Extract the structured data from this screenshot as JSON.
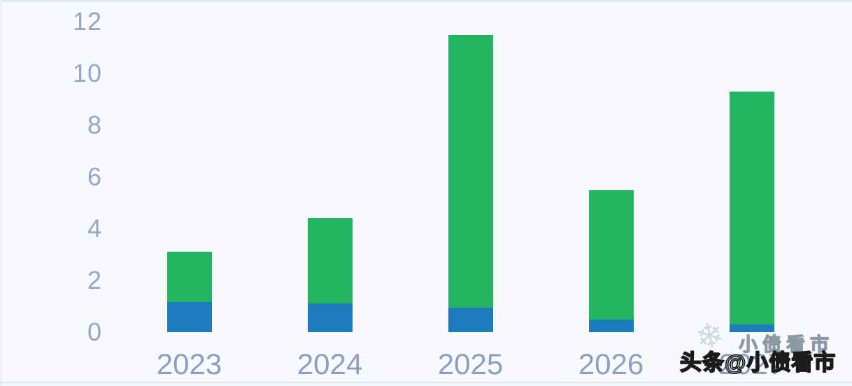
{
  "page": {
    "background": "#f7f9fd"
  },
  "colors": {
    "green_series": "#22b45f",
    "blue_series": "#1d7bbe",
    "y_tick_label": "#95a5c7",
    "x_tick_label": "#8c9ec2"
  },
  "chart_data": {
    "type": "bar",
    "stacked": true,
    "grid": false,
    "categories": [
      "2023",
      "2024",
      "2025",
      "2026",
      "2027"
    ],
    "series": [
      {
        "name": "blue-bottom",
        "color": "#1d7bbe",
        "values": [
          1.15,
          1.1,
          0.95,
          0.5,
          0.3
        ]
      },
      {
        "name": "green-top",
        "color": "#22b45f",
        "values": [
          1.95,
          3.3,
          10.55,
          5.0,
          9.0
        ]
      }
    ],
    "totals": [
      3.1,
      4.4,
      11.5,
      5.5,
      9.3
    ],
    "yticks": [
      0,
      2,
      4,
      6,
      8,
      10,
      12
    ],
    "ylim": [
      0,
      12
    ],
    "legend_position": "none"
  },
  "watermark": {
    "icon_glyph": "❄",
    "light_text": "小债看市",
    "dark_text": "头条@小债看市"
  }
}
